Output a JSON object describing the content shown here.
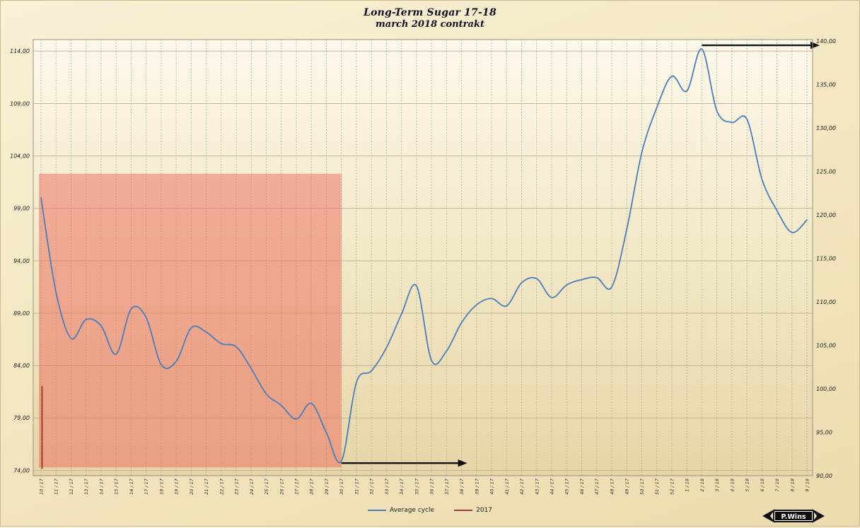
{
  "title": "Long-Term Sugar 17-18",
  "subtitle": "march 2018 contrakt",
  "legend": {
    "items": [
      {
        "label": "Average cycle",
        "color": "#4a7ebb"
      },
      {
        "label": "2017",
        "color": "#a83c32"
      }
    ]
  },
  "logo": {
    "text": "P.Wins"
  },
  "chart_data": {
    "type": "line",
    "title": "Long-Term Sugar 17-18",
    "subtitle": "march 2018 contrakt",
    "grid": {
      "vertical": "dashed",
      "horizontal": "solid"
    },
    "x_labels": [
      "10 / 17",
      "11 / 17",
      "12 / 17",
      "13 / 17",
      "14 / 17",
      "15 / 17",
      "16 / 17",
      "17 / 17",
      "18 / 17",
      "19 / 17",
      "20 / 17",
      "21 / 17",
      "22 / 17",
      "23 / 17",
      "24 / 17",
      "25 / 17",
      "26 / 17",
      "27 / 17",
      "28 / 17",
      "29 / 17",
      "30 / 17",
      "31 / 17",
      "32 / 17",
      "33 / 17",
      "34 / 17",
      "35 / 17",
      "36 / 17",
      "37 / 17",
      "38 / 17",
      "39 / 17",
      "40 / 17",
      "41 / 17",
      "42 / 17",
      "43 / 17",
      "44 / 17",
      "45 / 17",
      "46 / 17",
      "47 / 17",
      "48 / 17",
      "49 / 17",
      "50 / 17",
      "51 / 17",
      "52 / 17",
      "1 / 18",
      "2 / 18",
      "3 / 18",
      "4 / 18",
      "5 / 18",
      "6 / 18",
      "7 / 18",
      "8 / 18",
      "9 / 18"
    ],
    "left_axis": {
      "min": 74,
      "max": 114,
      "step": 5,
      "tick_labels": [
        "74,00",
        "79,00",
        "84,00",
        "89,00",
        "94,00",
        "99,00",
        "104,00",
        "109,00",
        "114,00"
      ]
    },
    "right_axis": {
      "min": 90,
      "max": 140,
      "step": 5,
      "tick_labels": [
        "90,00",
        "95,00",
        "100,00",
        "105,00",
        "110,00",
        "115,00",
        "120,00",
        "125,00",
        "130,00",
        "135,00",
        "140,00"
      ]
    },
    "series": [
      {
        "name": "Average cycle",
        "axis": "left",
        "color": "#4a7ebb",
        "smooth": true,
        "values": [
          100.0,
          91.0,
          86.6,
          88.4,
          87.8,
          85.1,
          89.4,
          88.6,
          84.1,
          84.4,
          87.6,
          87.2,
          86.1,
          85.8,
          83.7,
          81.3,
          80.2,
          78.9,
          80.4,
          77.6,
          74.9,
          82.4,
          83.5,
          85.7,
          88.9,
          91.6,
          84.5,
          85.4,
          88.1,
          89.8,
          90.4,
          89.7,
          91.9,
          92.3,
          90.5,
          91.7,
          92.2,
          92.4,
          91.5,
          97.0,
          104.3,
          108.6,
          111.6,
          110.2,
          114.2,
          108.3,
          107.2,
          107.5,
          101.8,
          98.8,
          96.7,
          97.9
        ]
      },
      {
        "name": "2017",
        "axis": "right",
        "color": "#a83c32",
        "segment": {
          "week": "10 / 17",
          "from": 100.3,
          "to": 90.8
        }
      }
    ],
    "highlight_region": {
      "from_week": "10 / 17",
      "to_week": "30 / 17",
      "top_left_axis": 102.3,
      "bottom_left_axis": 74.3,
      "color": "rgba(236,106,92,0.5)"
    },
    "annotations": {
      "bottom_arrow": {
        "start_week": "30 / 17",
        "end_week": "38 / 17",
        "value_left_axis": 74.7,
        "color": "#111111"
      },
      "top_arrow": {
        "start_week": "2 / 18",
        "value_right_axis": 139.5,
        "extends_past_plot": true,
        "color": "#111111"
      }
    }
  }
}
